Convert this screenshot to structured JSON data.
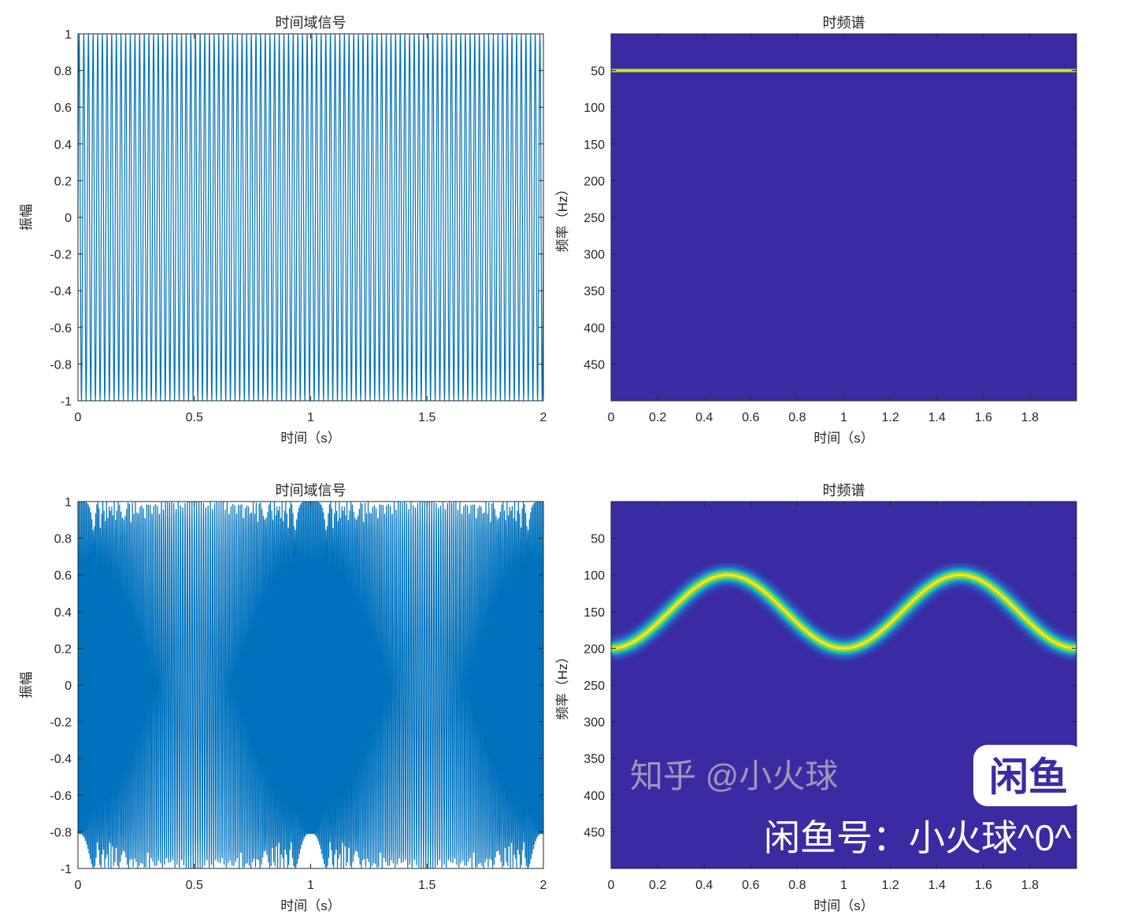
{
  "chart_data": [
    {
      "type": "line",
      "title": "时间域信号",
      "xlabel": "时间（s）",
      "ylabel": "振幅",
      "xlim": [
        0,
        2
      ],
      "ylim": [
        -1,
        1
      ],
      "xticks": [
        "0",
        "0.5",
        "1",
        "1.5",
        "2"
      ],
      "yticks": [
        "1",
        "0.8",
        "0.6",
        "0.4",
        "0.2",
        "0",
        "-0.2",
        "-0.4",
        "-0.6",
        "-0.8",
        "-1"
      ],
      "signal": {
        "kind": "sine",
        "amplitude": 1,
        "frequency_hz": 50
      },
      "color": "#0072bd"
    },
    {
      "type": "heatmap",
      "title": "时频谱",
      "xlabel": "时间（s）",
      "ylabel": "频率（Hz）",
      "xlim": [
        0,
        2
      ],
      "ylim": [
        0,
        500
      ],
      "y_reversed": true,
      "xticks": [
        "0",
        "0.2",
        "0.4",
        "0.6",
        "0.8",
        "1",
        "1.2",
        "1.4",
        "1.6",
        "1.8"
      ],
      "yticks": [
        "50",
        "100",
        "150",
        "200",
        "250",
        "300",
        "350",
        "400",
        "450"
      ],
      "ridge": {
        "time_s": [
          0,
          2
        ],
        "frequency_hz": [
          50,
          50
        ]
      },
      "colormap": "parula",
      "background_color": "#3b2ba3"
    },
    {
      "type": "line",
      "title": "时间域信号",
      "xlabel": "时间（s）",
      "ylabel": "振幅",
      "xlim": [
        0,
        2
      ],
      "ylim": [
        -1,
        1
      ],
      "xticks": [
        "0",
        "0.5",
        "1",
        "1.5",
        "2"
      ],
      "yticks": [
        "1",
        "0.8",
        "0.6",
        "0.4",
        "0.2",
        "0",
        "-0.2",
        "-0.4",
        "-0.6",
        "-0.8",
        "-1"
      ],
      "signal": {
        "kind": "sinusoidal FM",
        "amplitude": 1,
        "center_frequency_hz": 150,
        "frequency_deviation_hz": 50,
        "modulation_frequency_hz": 1
      },
      "color": "#0072bd"
    },
    {
      "type": "heatmap",
      "title": "时频谱",
      "xlabel": "时间（s）",
      "ylabel": "频率（Hz）",
      "xlim": [
        0,
        2
      ],
      "ylim": [
        0,
        500
      ],
      "y_reversed": true,
      "xticks": [
        "0",
        "0.2",
        "0.4",
        "0.6",
        "0.8",
        "1",
        "1.2",
        "1.4",
        "1.6",
        "1.8"
      ],
      "yticks": [
        "50",
        "100",
        "150",
        "200",
        "250",
        "300",
        "350",
        "400",
        "450"
      ],
      "ridge": {
        "time_s": [
          0,
          0.5,
          1,
          1.5,
          2
        ],
        "frequency_hz": [
          200,
          100,
          200,
          100,
          200
        ]
      },
      "colormap": "parula",
      "background_color": "#3b2ba3"
    }
  ],
  "watermarks": {
    "logo": "闲鱼",
    "xianyu_id": "闲鱼号：小火球^0^",
    "zhihu": "知乎 @小火球"
  }
}
